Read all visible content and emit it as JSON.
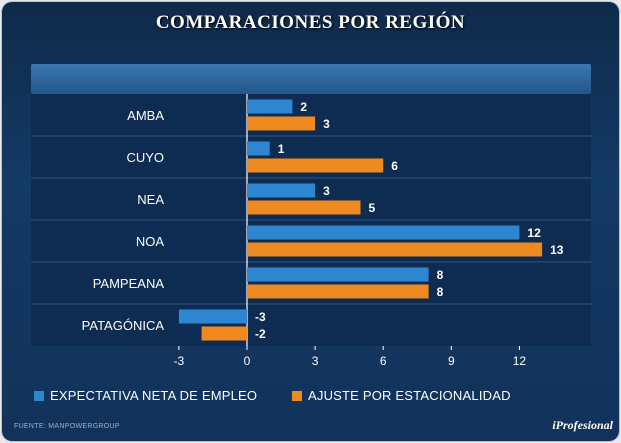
{
  "title": "COMPARACIONES POR REGIÓN",
  "source": "FUENTE: MANPOWERGROUP",
  "brand": "iProfesional",
  "colors": {
    "series1": "#2e86d1",
    "series2": "#ee8a1f",
    "background": "#143a66"
  },
  "chart_data": {
    "type": "bar",
    "orientation": "horizontal",
    "categories": [
      "AMBA",
      "CUYO",
      "NEA",
      "NOA",
      "PAMPEANA",
      "PATAGÓNICA"
    ],
    "series": [
      {
        "name": "EXPECTATIVA NETA DE EMPLEO",
        "values": [
          2,
          1,
          3,
          12,
          8,
          -3
        ]
      },
      {
        "name": "AJUSTE POR ESTACIONALIDAD",
        "values": [
          3,
          6,
          5,
          13,
          8,
          -2
        ]
      }
    ],
    "xlim": [
      -3,
      15
    ],
    "xticks": [
      -3,
      0,
      3,
      6,
      9,
      12
    ],
    "legend": "bottom"
  }
}
